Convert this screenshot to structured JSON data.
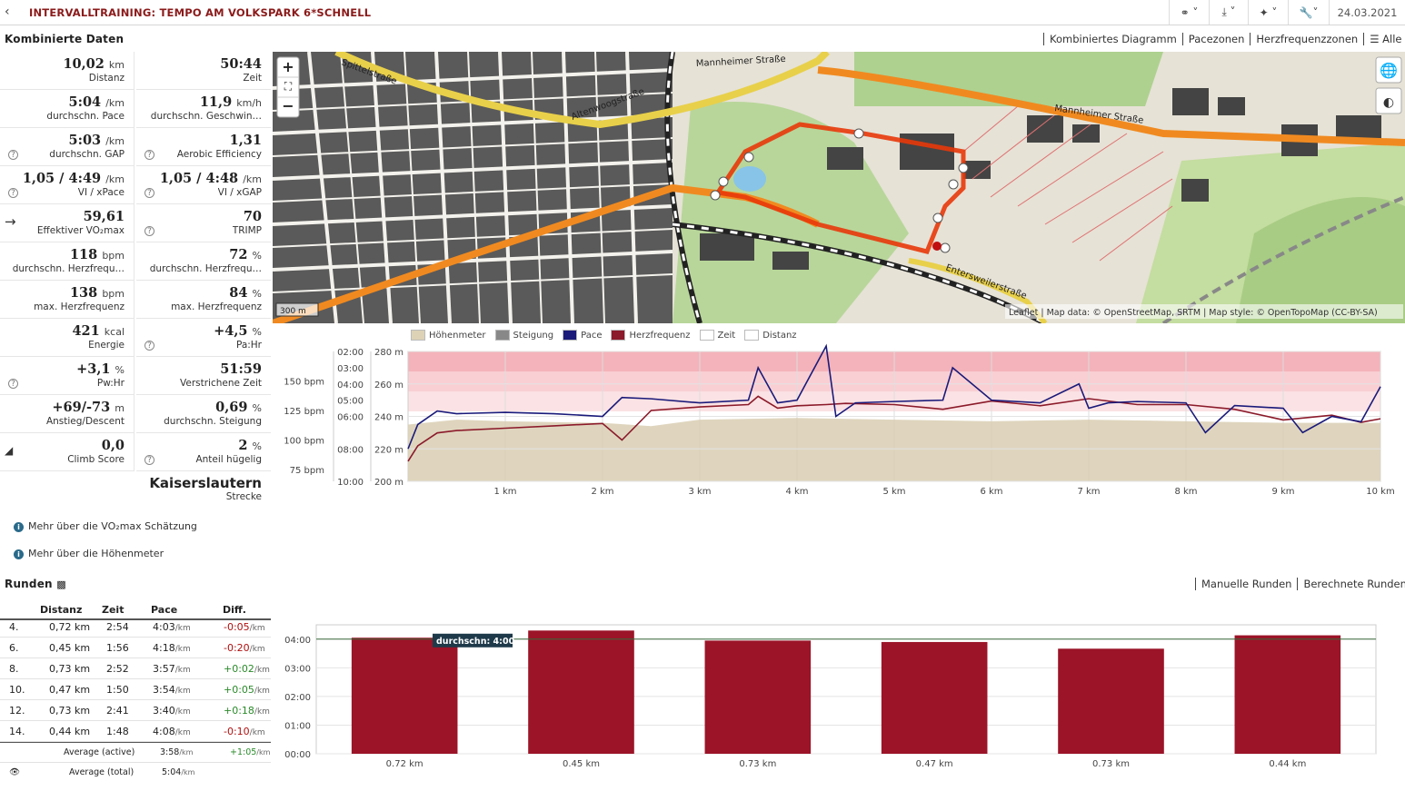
{
  "header": {
    "title": "INTERVALLTRAINING: TEMPO AM VOLKSPARK 6*SCHNELL",
    "date": "24.03.2021",
    "buttons": [
      "share",
      "download",
      "magic",
      "tools"
    ]
  },
  "combined": {
    "heading": "Kombinierte Daten",
    "views": [
      "Kombiniertes Diagramm",
      "Pacezonen",
      "Herzfrequenzzonen",
      "Alle"
    ]
  },
  "stats": [
    {
      "value": "10,02",
      "unit": "km",
      "label": "Distanz"
    },
    {
      "value": "50:44",
      "unit": "",
      "label": "Zeit"
    },
    {
      "value": "5:04",
      "unit": "/km",
      "label": "durchschn. Pace"
    },
    {
      "value": "11,9",
      "unit": "km/h",
      "label": "durchschn. Geschwin…"
    },
    {
      "value": "5:03",
      "unit": "/km",
      "label": "durchschn. GAP",
      "help": true
    },
    {
      "value": "1,31",
      "unit": "",
      "label": "Aerobic Efficiency",
      "help": true
    },
    {
      "value": "1,05 / 4:49",
      "unit": "/km",
      "label": "VI / xPace",
      "help": true
    },
    {
      "value": "1,05 / 4:48",
      "unit": "/km",
      "label": "VI / xGAP",
      "help": true
    },
    {
      "value": "59,61",
      "unit": "",
      "label": "Effektiver VO₂max",
      "arrow": true
    },
    {
      "value": "70",
      "unit": "",
      "label": "TRIMP",
      "help": true
    },
    {
      "value": "118",
      "unit": "bpm",
      "label": "durchschn. Herzfrequ…"
    },
    {
      "value": "72",
      "unit": "%",
      "label": "durchschn. Herzfrequ…"
    },
    {
      "value": "138",
      "unit": "bpm",
      "label": "max. Herzfrequenz"
    },
    {
      "value": "84",
      "unit": "%",
      "label": "max. Herzfrequenz"
    },
    {
      "value": "421",
      "unit": "kcal",
      "label": "Energie"
    },
    {
      "value": "+4,5",
      "unit": "%",
      "label": "Pa:Hr",
      "help": true
    },
    {
      "value": "+3,1",
      "unit": "%",
      "label": "Pw:Hr",
      "help": true
    },
    {
      "value": "51:59",
      "unit": "",
      "label": "Verstrichene Zeit"
    },
    {
      "value": "+69/-73",
      "unit": "m",
      "label": "Anstieg/Descent"
    },
    {
      "value": "0,69",
      "unit": "%",
      "label": "durchschn. Steigung"
    },
    {
      "value": "0,0",
      "unit": "",
      "label": "Climb Score",
      "chart": true
    },
    {
      "value": "2",
      "unit": "%",
      "label": "Anteil hügelig",
      "help": true
    }
  ],
  "location": {
    "value": "Kaiserslautern",
    "label": "Strecke"
  },
  "info_links": [
    "Mehr über die VO₂max Schätzung",
    "Mehr über die Höhenmeter"
  ],
  "map": {
    "attribution": "Leaflet | Map data: © OpenStreetMap, SRTM | Map style: © OpenTopoMap (CC-BY-SA)",
    "scale": "300 m",
    "streets": [
      "Spittelstraße",
      "Mannheimer Straße",
      "Mannheimer Straße",
      "Entersweilerstraße",
      "Altenwoogstraße"
    ],
    "zoom_in": "+",
    "zoom_out": "−"
  },
  "legend": [
    "Höhenmeter",
    "Steigung",
    "Pace",
    "Herzfrequenz",
    "Zeit",
    "Distanz"
  ],
  "colors": {
    "pace": "#1a1a7a",
    "hr": "#8b1a2a",
    "elev": "#d9ceb3",
    "bar": "#9b1428",
    "hrzone": "#f7c8cc"
  },
  "chart_data": [
    {
      "type": "line",
      "title": "",
      "xlabel": "",
      "x_ticks": [
        "1 km",
        "2 km",
        "3 km",
        "4 km",
        "5 km",
        "6 km",
        "7 km",
        "8 km",
        "9 km",
        "10 km"
      ],
      "x_range": [
        0,
        10
      ],
      "axes": {
        "hr_ticks": [
          "150 bpm",
          "125 bpm",
          "100 bpm",
          "75 bpm"
        ],
        "pace_ticks": [
          "02:00",
          "03:00",
          "04:00",
          "05:00",
          "06:00",
          "08:00",
          "10:00"
        ],
        "elev_ticks": [
          "280 m",
          "260 m",
          "240 m",
          "220 m",
          "200 m"
        ]
      },
      "series": [
        {
          "name": "Herzfrequenz",
          "x": [
            0,
            0.1,
            0.3,
            0.5,
            1,
            1.5,
            2,
            2.2,
            2.5,
            3,
            3.5,
            3.6,
            3.8,
            4,
            4.3,
            4.5,
            5,
            5.5,
            6,
            6.5,
            7,
            7.5,
            8,
            8.5,
            9,
            9.5,
            9.8,
            10
          ],
          "values": [
            82,
            95,
            106,
            108,
            110,
            112,
            114,
            100,
            125,
            128,
            130,
            137,
            127,
            129,
            130,
            131,
            130,
            126,
            133,
            129,
            135,
            130,
            130,
            126,
            117,
            121,
            115,
            118
          ]
        },
        {
          "name": "Pace",
          "x": [
            0,
            0.1,
            0.3,
            0.5,
            1,
            1.5,
            2,
            2.2,
            2.5,
            3,
            3.5,
            3.6,
            3.8,
            4,
            4.3,
            4.4,
            4.6,
            5,
            5.5,
            5.6,
            6,
            6.5,
            6.9,
            7,
            7.2,
            7.5,
            8,
            8.2,
            8.5,
            9,
            9.2,
            9.5,
            9.8,
            10
          ],
          "values": [
            "08:00",
            "06:30",
            "05:40",
            "05:50",
            "05:45",
            "05:50",
            "06:00",
            "04:50",
            "04:55",
            "05:10",
            "05:00",
            "03:00",
            "05:10",
            "05:00",
            "01:40",
            "06:00",
            "05:10",
            "05:05",
            "05:00",
            "03:00",
            "05:00",
            "05:10",
            "04:00",
            "05:30",
            "05:10",
            "05:05",
            "05:10",
            "07:00",
            "05:20",
            "05:30",
            "07:00",
            "06:00",
            "06:20",
            "04:10"
          ]
        },
        {
          "name": "Höhenmeter",
          "x": [
            0,
            0.5,
            1,
            2,
            2.5,
            3,
            4,
            5,
            6,
            7,
            8,
            9,
            10
          ],
          "values": [
            235,
            238,
            237,
            236,
            234,
            238,
            239,
            238,
            237,
            238,
            237,
            236,
            236
          ]
        }
      ]
    },
    {
      "type": "bar",
      "title": "",
      "categories": [
        "0.72 km",
        "0.45 km",
        "0.73 km",
        "0.47 km",
        "0.73 km",
        "0.44 km"
      ],
      "values": [
        "04:03",
        "04:18",
        "03:57",
        "03:54",
        "03:40",
        "04:08"
      ],
      "y_ticks": [
        "04:00",
        "03:00",
        "02:00",
        "01:00",
        "00:00"
      ],
      "ylim": [
        "00:00",
        "04:30"
      ],
      "average_label": "durchschn: 4:00",
      "average": "04:00"
    }
  ],
  "laps": {
    "heading": "Runden",
    "views": [
      "Manuelle Runden",
      "Berechnete Runden"
    ],
    "columns": [
      "Distanz",
      "Zeit",
      "Pace",
      "Diff."
    ],
    "rows": [
      {
        "n": "4.",
        "dist": "0,72 km",
        "time": "2:54",
        "pace": "4:03",
        "diff": "-0:05",
        "sign": "neg"
      },
      {
        "n": "6.",
        "dist": "0,45 km",
        "time": "1:56",
        "pace": "4:18",
        "diff": "-0:20",
        "sign": "neg"
      },
      {
        "n": "8.",
        "dist": "0,73 km",
        "time": "2:52",
        "pace": "3:57",
        "diff": "+0:02",
        "sign": "pos"
      },
      {
        "n": "10.",
        "dist": "0,47 km",
        "time": "1:50",
        "pace": "3:54",
        "diff": "+0:05",
        "sign": "pos"
      },
      {
        "n": "12.",
        "dist": "0,73 km",
        "time": "2:41",
        "pace": "3:40",
        "diff": "+0:18",
        "sign": "pos"
      },
      {
        "n": "14.",
        "dist": "0,44 km",
        "time": "1:48",
        "pace": "4:08",
        "diff": "-0:10",
        "sign": "neg"
      }
    ],
    "unit": "/km",
    "avg_active": {
      "label": "Average (active)",
      "pace": "3:58",
      "diff": "+1:05"
    },
    "avg_total": {
      "label": "Average (total)",
      "pace": "5:04"
    }
  }
}
